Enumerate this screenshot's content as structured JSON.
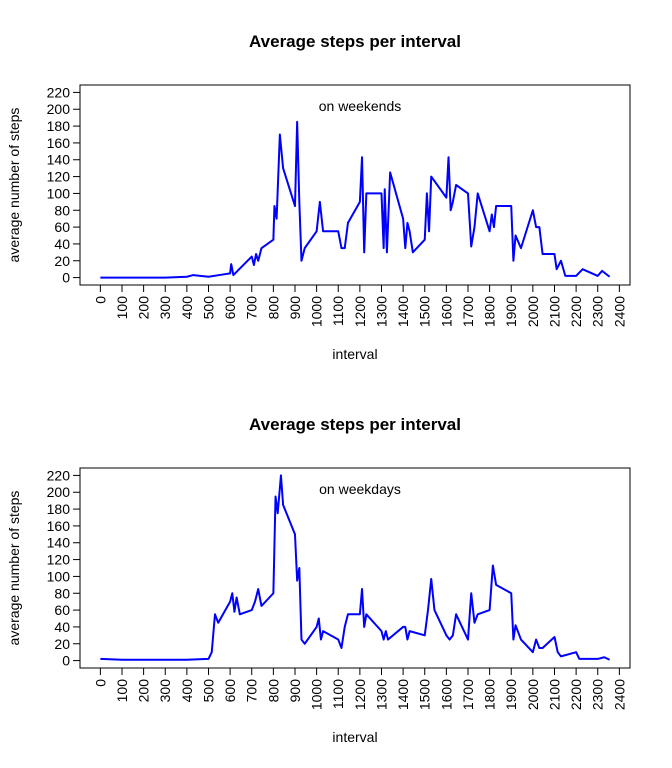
{
  "chart_data": [
    {
      "type": "line",
      "title": "Average steps per interval",
      "xlabel": "interval",
      "ylabel": "average number of steps",
      "annotation": "on weekends",
      "color": "#0000ff",
      "xlim": [
        -94.2,
        2449.2
      ],
      "ylim": [
        -8.8,
        228.8
      ],
      "xticks": [
        0,
        100,
        200,
        300,
        400,
        500,
        600,
        700,
        800,
        900,
        1000,
        1100,
        1200,
        1300,
        1400,
        1500,
        1600,
        1700,
        1800,
        1900,
        2000,
        2100,
        2200,
        2300,
        2400
      ],
      "yticks": [
        0,
        20,
        40,
        60,
        80,
        100,
        120,
        140,
        160,
        180,
        200,
        220
      ],
      "x": [
        0,
        100,
        200,
        300,
        400,
        430,
        500,
        550,
        600,
        605,
        615,
        700,
        710,
        720,
        730,
        745,
        800,
        805,
        815,
        830,
        845,
        900,
        910,
        920,
        930,
        945,
        1000,
        1015,
        1030,
        1045,
        1100,
        1115,
        1130,
        1145,
        1200,
        1210,
        1220,
        1230,
        1300,
        1310,
        1315,
        1325,
        1340,
        1400,
        1410,
        1420,
        1430,
        1445,
        1500,
        1510,
        1520,
        1530,
        1600,
        1610,
        1620,
        1630,
        1645,
        1700,
        1715,
        1730,
        1745,
        1800,
        1810,
        1820,
        1830,
        1900,
        1910,
        1920,
        1945,
        2000,
        2015,
        2030,
        2045,
        2100,
        2110,
        2130,
        2150,
        2200,
        2230,
        2300,
        2320,
        2355
      ],
      "values": [
        0,
        0,
        0,
        0,
        1,
        3,
        1,
        3,
        5,
        16,
        3,
        25,
        15,
        28,
        20,
        35,
        45,
        85,
        70,
        170,
        130,
        85,
        185,
        90,
        20,
        35,
        55,
        90,
        55,
        55,
        55,
        35,
        35,
        65,
        90,
        143,
        30,
        100,
        100,
        35,
        105,
        30,
        125,
        70,
        35,
        65,
        55,
        30,
        45,
        100,
        55,
        120,
        95,
        143,
        80,
        90,
        110,
        100,
        37,
        60,
        100,
        55,
        75,
        60,
        85,
        85,
        20,
        50,
        35,
        80,
        60,
        60,
        28,
        28,
        10,
        20,
        2,
        2,
        10,
        2,
        8,
        1
      ]
    },
    {
      "type": "line",
      "title": "Average steps per interval",
      "xlabel": "interval",
      "ylabel": "average number of steps",
      "annotation": "on weekdays",
      "color": "#0000ff",
      "xlim": [
        -94.2,
        2449.2
      ],
      "ylim": [
        -8.8,
        228.8
      ],
      "xticks": [
        0,
        100,
        200,
        300,
        400,
        500,
        600,
        700,
        800,
        900,
        1000,
        1100,
        1200,
        1300,
        1400,
        1500,
        1600,
        1700,
        1800,
        1900,
        2000,
        2100,
        2200,
        2300,
        2400
      ],
      "yticks": [
        0,
        20,
        40,
        60,
        80,
        100,
        120,
        140,
        160,
        180,
        200,
        220
      ],
      "x": [
        0,
        100,
        200,
        300,
        400,
        500,
        515,
        530,
        545,
        600,
        610,
        620,
        630,
        645,
        700,
        715,
        730,
        745,
        800,
        810,
        820,
        835,
        845,
        900,
        910,
        920,
        930,
        945,
        1000,
        1010,
        1020,
        1030,
        1100,
        1115,
        1130,
        1145,
        1200,
        1210,
        1220,
        1230,
        1300,
        1310,
        1320,
        1330,
        1400,
        1410,
        1420,
        1430,
        1500,
        1515,
        1530,
        1545,
        1600,
        1615,
        1630,
        1645,
        1700,
        1715,
        1730,
        1745,
        1800,
        1815,
        1830,
        1900,
        1910,
        1920,
        1945,
        2000,
        2015,
        2030,
        2045,
        2100,
        2115,
        2130,
        2200,
        2215,
        2300,
        2330,
        2355
      ],
      "values": [
        2,
        1,
        1,
        1,
        1,
        2,
        10,
        55,
        45,
        70,
        80,
        58,
        75,
        55,
        60,
        70,
        85,
        65,
        80,
        195,
        175,
        220,
        185,
        150,
        95,
        110,
        25,
        20,
        40,
        50,
        25,
        35,
        25,
        15,
        40,
        55,
        55,
        85,
        40,
        55,
        35,
        25,
        35,
        25,
        40,
        40,
        25,
        35,
        30,
        60,
        97,
        60,
        30,
        25,
        30,
        55,
        25,
        80,
        45,
        55,
        60,
        113,
        90,
        80,
        25,
        42,
        25,
        10,
        25,
        15,
        15,
        28,
        10,
        5,
        10,
        2,
        2,
        4,
        1
      ]
    }
  ]
}
